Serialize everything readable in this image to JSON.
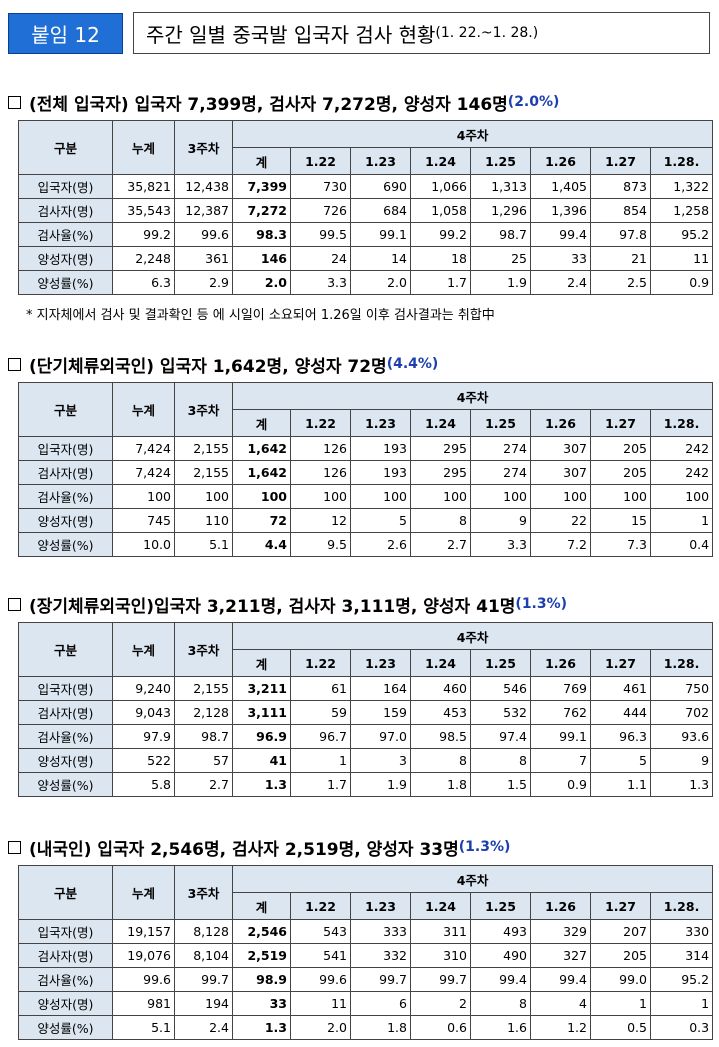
{
  "header": {
    "badge": "붙임 12",
    "title": "주간 일별 중국발 입국자 검사 현황",
    "period": "(1. 22.~1. 28.)"
  },
  "table_headers": {
    "category": "구분",
    "cumulative": "누계",
    "week3": "3주차",
    "week4": "4주차",
    "total": "계",
    "dates": [
      "1.22",
      "1.23",
      "1.24",
      "1.25",
      "1.26",
      "1.27",
      "1.28."
    ]
  },
  "sections": [
    {
      "title_main": "(전체 입국자) 입국자 7,399명, 검사자 7,272명, 양성자 146명",
      "title_pct": "(2.0%)",
      "rows": [
        {
          "label": "입국자(명)",
          "cumulative": "35,821",
          "week3": "12,438",
          "total": "7,399",
          "days": [
            "730",
            "690",
            "1,066",
            "1,313",
            "1,405",
            "873",
            "1,322"
          ]
        },
        {
          "label": "검사자(명)",
          "cumulative": "35,543",
          "week3": "12,387",
          "total": "7,272",
          "days": [
            "726",
            "684",
            "1,058",
            "1,296",
            "1,396",
            "854",
            "1,258"
          ]
        },
        {
          "label": "검사율(%)",
          "cumulative": "99.2",
          "week3": "99.6",
          "total": "98.3",
          "days": [
            "99.5",
            "99.1",
            "99.2",
            "98.7",
            "99.4",
            "97.8",
            "95.2"
          ]
        },
        {
          "label": "양성자(명)",
          "cumulative": "2,248",
          "week3": "361",
          "total": "146",
          "days": [
            "24",
            "14",
            "18",
            "25",
            "33",
            "21",
            "11"
          ]
        },
        {
          "label": "양성률(%)",
          "cumulative": "6.3",
          "week3": "2.9",
          "total": "2.0",
          "days": [
            "3.3",
            "2.0",
            "1.7",
            "1.9",
            "2.4",
            "2.5",
            "0.9"
          ]
        }
      ],
      "note": "* 지자체에서 검사 및 결과확인 등 에 시일이 소요되어 1.26일 이후 검사결과는 취합中"
    },
    {
      "title_main": "(단기체류외국인) 입국자 1,642명, 양성자 72명",
      "title_pct": "(4.4%)",
      "rows": [
        {
          "label": "입국자(명)",
          "cumulative": "7,424",
          "week3": "2,155",
          "total": "1,642",
          "days": [
            "126",
            "193",
            "295",
            "274",
            "307",
            "205",
            "242"
          ]
        },
        {
          "label": "검사자(명)",
          "cumulative": "7,424",
          "week3": "2,155",
          "total": "1,642",
          "days": [
            "126",
            "193",
            "295",
            "274",
            "307",
            "205",
            "242"
          ]
        },
        {
          "label": "검사율(%)",
          "cumulative": "100",
          "week3": "100",
          "total": "100",
          "days": [
            "100",
            "100",
            "100",
            "100",
            "100",
            "100",
            "100"
          ]
        },
        {
          "label": "양성자(명)",
          "cumulative": "745",
          "week3": "110",
          "total": "72",
          "days": [
            "12",
            "5",
            "8",
            "9",
            "22",
            "15",
            "1"
          ]
        },
        {
          "label": "양성률(%)",
          "cumulative": "10.0",
          "week3": "5.1",
          "total": "4.4",
          "days": [
            "9.5",
            "2.6",
            "2.7",
            "3.3",
            "7.2",
            "7.3",
            "0.4"
          ]
        }
      ]
    },
    {
      "title_main": "(장기체류외국인)입국자 3,211명, 검사자 3,111명, 양성자 41명",
      "title_pct": "(1.3%)",
      "rows": [
        {
          "label": "입국자(명)",
          "cumulative": "9,240",
          "week3": "2,155",
          "total": "3,211",
          "days": [
            "61",
            "164",
            "460",
            "546",
            "769",
            "461",
            "750"
          ]
        },
        {
          "label": "검사자(명)",
          "cumulative": "9,043",
          "week3": "2,128",
          "total": "3,111",
          "days": [
            "59",
            "159",
            "453",
            "532",
            "762",
            "444",
            "702"
          ]
        },
        {
          "label": "검사율(%)",
          "cumulative": "97.9",
          "week3": "98.7",
          "total": "96.9",
          "days": [
            "96.7",
            "97.0",
            "98.5",
            "97.4",
            "99.1",
            "96.3",
            "93.6"
          ]
        },
        {
          "label": "양성자(명)",
          "cumulative": "522",
          "week3": "57",
          "total": "41",
          "days": [
            "1",
            "3",
            "8",
            "8",
            "7",
            "5",
            "9"
          ]
        },
        {
          "label": "양성률(%)",
          "cumulative": "5.8",
          "week3": "2.7",
          "total": "1.3",
          "days": [
            "1.7",
            "1.9",
            "1.8",
            "1.5",
            "0.9",
            "1.1",
            "1.3"
          ]
        }
      ]
    },
    {
      "title_main": "(내국인) 입국자 2,546명, 검사자 2,519명, 양성자 33명",
      "title_pct": "(1.3%)",
      "rows": [
        {
          "label": "입국자(명)",
          "cumulative": "19,157",
          "week3": "8,128",
          "total": "2,546",
          "days": [
            "543",
            "333",
            "311",
            "493",
            "329",
            "207",
            "330"
          ]
        },
        {
          "label": "검사자(명)",
          "cumulative": "19,076",
          "week3": "8,104",
          "total": "2,519",
          "days": [
            "541",
            "332",
            "310",
            "490",
            "327",
            "205",
            "314"
          ]
        },
        {
          "label": "검사율(%)",
          "cumulative": "99.6",
          "week3": "99.7",
          "total": "98.9",
          "days": [
            "99.6",
            "99.7",
            "99.7",
            "99.4",
            "99.4",
            "99.0",
            "95.2"
          ]
        },
        {
          "label": "양성자(명)",
          "cumulative": "981",
          "week3": "194",
          "total": "33",
          "days": [
            "11",
            "6",
            "2",
            "8",
            "4",
            "1",
            "1"
          ]
        },
        {
          "label": "양성률(%)",
          "cumulative": "5.1",
          "week3": "2.4",
          "total": "1.3",
          "days": [
            "2.0",
            "1.8",
            "0.6",
            "1.6",
            "1.2",
            "0.5",
            "0.3"
          ]
        }
      ]
    }
  ]
}
